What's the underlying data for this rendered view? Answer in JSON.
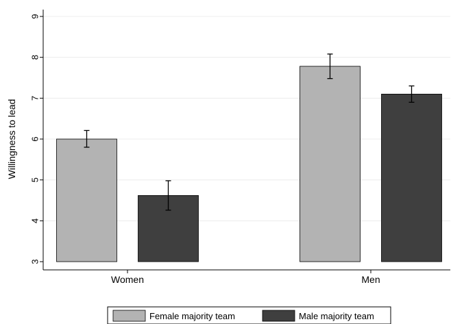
{
  "chart_data": {
    "type": "bar",
    "title": "",
    "xlabel": "",
    "ylabel": "Willingness to lead",
    "ylim": [
      3,
      9
    ],
    "yticks": [
      3,
      4,
      5,
      6,
      7,
      8,
      9
    ],
    "grid": true,
    "legend_position": "bottom",
    "categories": [
      "Women",
      "Men"
    ],
    "series": [
      {
        "name": "Female majority team",
        "color": "#b3b3b3",
        "values": [
          6.0,
          7.78
        ],
        "error_low": [
          5.8,
          7.48
        ],
        "error_high": [
          6.21,
          8.08
        ]
      },
      {
        "name": "Male majority team",
        "color": "#3f3f3f",
        "values": [
          4.62,
          7.1
        ],
        "error_low": [
          4.26,
          6.9
        ],
        "error_high": [
          4.98,
          7.3
        ]
      }
    ]
  }
}
